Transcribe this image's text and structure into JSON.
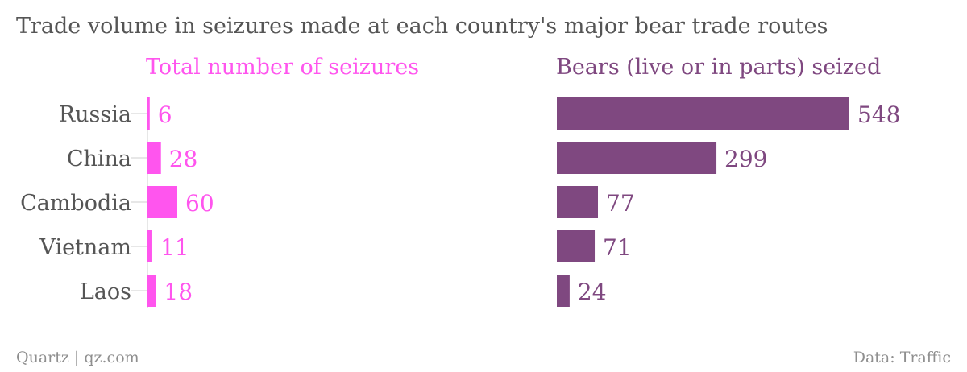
{
  "colors": {
    "seizures": "#ff55ee",
    "bears": "#7f4880",
    "text": "#555555",
    "footer": "#8f8f8f"
  },
  "chart_data": {
    "type": "bar",
    "orientation": "horizontal",
    "title": "Trade volume in seizures made at each country's major bear trade routes",
    "categories": [
      "Russia",
      "China",
      "Cambodia",
      "Vietnam",
      "Laos"
    ],
    "series": [
      {
        "name": "Total number of seizures",
        "values": [
          6,
          28,
          60,
          11,
          18
        ]
      },
      {
        "name": "Bears (live or in parts) seized",
        "values": [
          548,
          299,
          77,
          71,
          24
        ]
      }
    ]
  },
  "footer": {
    "source_left": "Quartz | qz.com",
    "source_right": "Data: Traffic"
  }
}
